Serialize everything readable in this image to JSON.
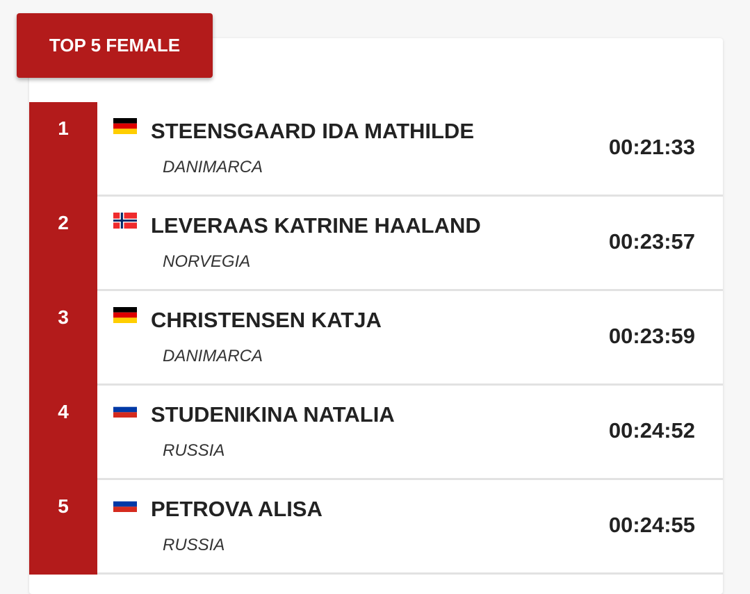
{
  "header": {
    "title": "TOP 5 FEMALE"
  },
  "colors": {
    "accent": "#b31b1b"
  },
  "results": [
    {
      "rank": "1",
      "name": "STEENSGAARD IDA MATHILDE",
      "country": "DANIMARCA",
      "flag": "germany-flag",
      "time": "00:21:33"
    },
    {
      "rank": "2",
      "name": "LEVERAAS KATRINE HAALAND",
      "country": "NORVEGIA",
      "flag": "norway-flag",
      "time": "00:23:57"
    },
    {
      "rank": "3",
      "name": "CHRISTENSEN KATJA",
      "country": "DANIMARCA",
      "flag": "germany-flag",
      "time": "00:23:59"
    },
    {
      "rank": "4",
      "name": "STUDENIKINA NATALIA",
      "country": "RUSSIA",
      "flag": "russia-flag",
      "time": "00:24:52"
    },
    {
      "rank": "5",
      "name": "PETROVA ALISA",
      "country": "RUSSIA",
      "flag": "russia-flag",
      "time": "00:24:55"
    }
  ]
}
